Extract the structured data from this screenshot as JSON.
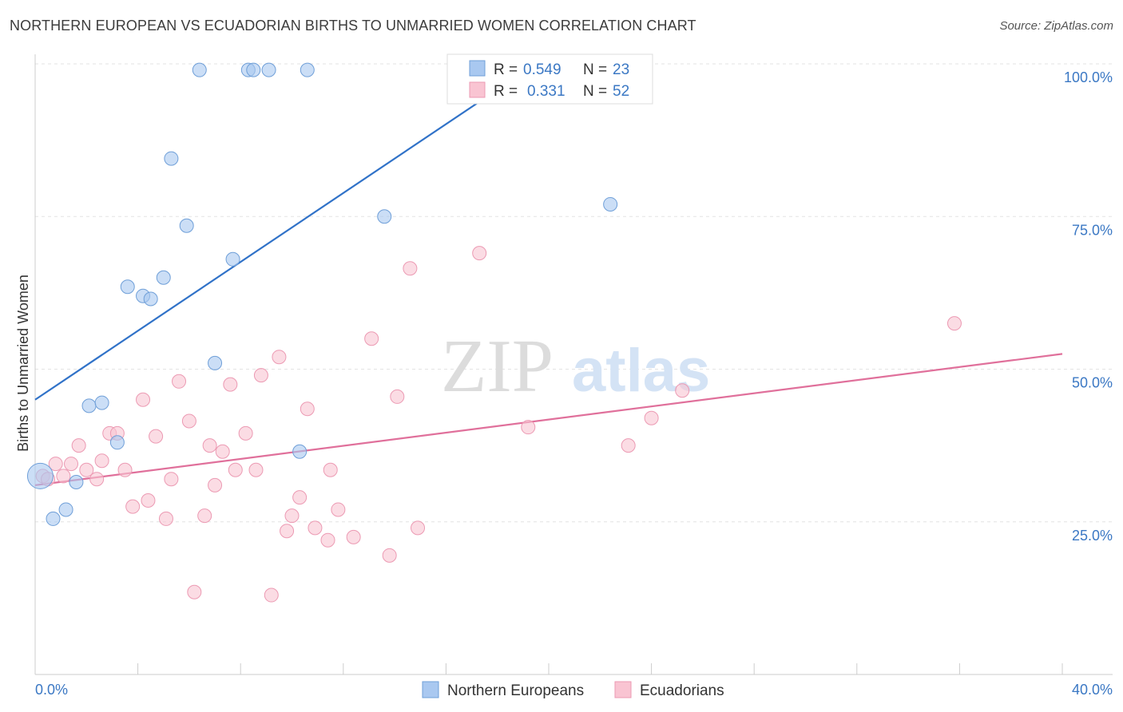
{
  "chart_data": {
    "type": "scatter",
    "title": "NORTHERN EUROPEAN VS ECUADORIAN BIRTHS TO UNMARRIED WOMEN CORRELATION CHART",
    "source": "Source: ZipAtlas.com",
    "xlabel": "",
    "ylabel": "Births to Unmarried Women",
    "xlim": [
      0,
      40
    ],
    "ylim": [
      0,
      100
    ],
    "x_tick_labels": [
      "0.0%",
      "40.0%"
    ],
    "y_tick_labels": [
      "25.0%",
      "50.0%",
      "75.0%",
      "100.0%"
    ],
    "y_ticks": [
      25,
      50,
      75,
      100
    ],
    "grid": true,
    "watermark": {
      "zip": "ZIP",
      "atlas": "atlas"
    },
    "legend_stats": [
      {
        "r_label": "R =",
        "r_value": "0.549",
        "n_label": "N =",
        "n_value": "23"
      },
      {
        "r_label": "R =",
        "r_value": "0.331",
        "n_label": "N =",
        "n_value": "52"
      }
    ],
    "series": [
      {
        "name": "Northern Europeans",
        "color": "#a9c8f0",
        "stroke": "#6f9fd8",
        "line_color": "#3072c8",
        "trend": [
          [
            0,
            45
          ],
          [
            19.5,
            100
          ]
        ],
        "points": [
          [
            0.2,
            32.5
          ],
          [
            0.7,
            25.5
          ],
          [
            1.2,
            27
          ],
          [
            1.6,
            31.5
          ],
          [
            2.1,
            44
          ],
          [
            2.6,
            44.5
          ],
          [
            3.2,
            38
          ],
          [
            3.6,
            63.5
          ],
          [
            4.2,
            62
          ],
          [
            4.5,
            61.5
          ],
          [
            5.0,
            65
          ],
          [
            5.3,
            84.5
          ],
          [
            5.9,
            73.5
          ],
          [
            6.4,
            99
          ],
          [
            7.0,
            51
          ],
          [
            7.7,
            68
          ],
          [
            8.3,
            99
          ],
          [
            8.5,
            99
          ],
          [
            9.1,
            99
          ],
          [
            10.3,
            36.5
          ],
          [
            10.6,
            99
          ],
          [
            13.6,
            75
          ],
          [
            22.4,
            77
          ]
        ]
      },
      {
        "name": "Ecuadorians",
        "color": "#f9c4d2",
        "stroke": "#ec9ab3",
        "line_color": "#e0709b",
        "trend": [
          [
            0,
            31
          ],
          [
            40,
            52.5
          ]
        ],
        "points": [
          [
            0.3,
            32.5
          ],
          [
            0.5,
            32
          ],
          [
            0.8,
            34.5
          ],
          [
            1.1,
            32.5
          ],
          [
            1.4,
            34.5
          ],
          [
            1.7,
            37.5
          ],
          [
            2.0,
            33.5
          ],
          [
            2.4,
            32
          ],
          [
            2.6,
            35
          ],
          [
            2.9,
            39.5
          ],
          [
            3.2,
            39.5
          ],
          [
            3.5,
            33.5
          ],
          [
            3.8,
            27.5
          ],
          [
            4.2,
            45
          ],
          [
            4.4,
            28.5
          ],
          [
            4.7,
            39
          ],
          [
            5.1,
            25.5
          ],
          [
            5.3,
            32
          ],
          [
            5.6,
            48
          ],
          [
            6.0,
            41.5
          ],
          [
            6.2,
            13.5
          ],
          [
            6.6,
            26
          ],
          [
            6.8,
            37.5
          ],
          [
            7.0,
            31
          ],
          [
            7.3,
            36.5
          ],
          [
            7.6,
            47.5
          ],
          [
            7.8,
            33.5
          ],
          [
            8.2,
            39.5
          ],
          [
            8.6,
            33.5
          ],
          [
            8.8,
            49
          ],
          [
            9.2,
            13
          ],
          [
            9.5,
            52
          ],
          [
            9.8,
            23.5
          ],
          [
            10.0,
            26
          ],
          [
            10.3,
            29
          ],
          [
            10.6,
            43.5
          ],
          [
            10.9,
            24
          ],
          [
            11.4,
            22
          ],
          [
            11.5,
            33.5
          ],
          [
            11.8,
            27
          ],
          [
            12.4,
            22.5
          ],
          [
            13.1,
            55
          ],
          [
            13.8,
            19.5
          ],
          [
            14.1,
            45.5
          ],
          [
            14.6,
            66.5
          ],
          [
            14.9,
            24
          ],
          [
            17.3,
            69
          ],
          [
            19.2,
            40.5
          ],
          [
            23.1,
            37.5
          ],
          [
            24.0,
            42
          ],
          [
            25.2,
            46.5
          ],
          [
            35.8,
            57.5
          ]
        ]
      }
    ]
  }
}
